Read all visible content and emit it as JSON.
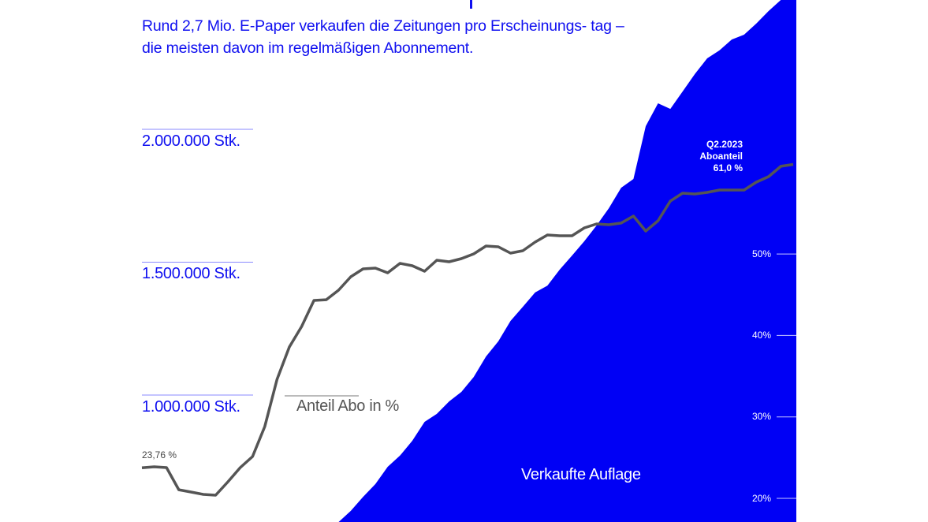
{
  "subtitle": "Rund 2,7 Mio. E-Paper verkaufen die Zeitungen pro Erscheinungs- tag – die meisten davon im regelmäßigen Abonnement.",
  "colors": {
    "area": "#0000f5",
    "line": "#555555",
    "text_blue": "#1010f0",
    "tick_line_blue": "#8a8aff"
  },
  "chart_data": {
    "type": "line+area",
    "grid": false,
    "series": [
      {
        "name": "Anteil Abo in %",
        "axis": "right",
        "type": "line",
        "values": [
          23.76,
          23.87,
          23.78,
          21.06,
          20.77,
          20.48,
          20.39,
          22.03,
          23.78,
          25.13,
          28.81,
          34.62,
          38.59,
          41.1,
          44.3,
          44.39,
          45.56,
          47.2,
          48.17,
          48.27,
          47.69,
          48.85,
          48.56,
          47.88,
          49.24,
          49.04,
          49.43,
          50.01,
          50.98,
          50.88,
          50.11,
          50.4,
          51.46,
          52.33,
          52.24,
          52.24,
          53.2,
          53.69,
          53.59,
          53.79,
          54.66,
          52.82,
          54.08,
          56.5,
          57.46,
          57.37,
          57.56,
          57.85,
          57.85,
          57.85,
          58.82,
          59.5,
          60.76,
          61.0
        ]
      },
      {
        "name": "Verkaufte Auflage",
        "axis": "left",
        "type": "area",
        "start_index": 16,
        "values": [
          522000,
          564000,
          617000,
          665000,
          730000,
          772000,
          828000,
          899000,
          929000,
          976000,
          1012000,
          1068000,
          1145000,
          1202000,
          1279000,
          1332000,
          1386000,
          1412000,
          1472000,
          1525000,
          1579000,
          1638000,
          1703000,
          1780000,
          1813000,
          2012000,
          2098000,
          2077000,
          2142000,
          2208000,
          2267000,
          2297000,
          2338000,
          2356000,
          2398000,
          2445000,
          2487000,
          2522000
        ]
      }
    ],
    "left_axis": {
      "ticks": [
        1000000,
        1500000,
        2000000
      ],
      "tick_labels": [
        "1.000.000 Stk.",
        "1.500.000 Stk.",
        "2.000.000 Stk."
      ]
    },
    "right_axis": {
      "ticks": [
        20,
        30,
        40,
        50
      ],
      "tick_labels": [
        "20%",
        "30%",
        "40%",
        "50%"
      ]
    },
    "annotations": {
      "start": "23,76 %",
      "end": {
        "period": "Q2.2023",
        "label": "Aboanteil",
        "value": "61,0 %"
      }
    }
  }
}
